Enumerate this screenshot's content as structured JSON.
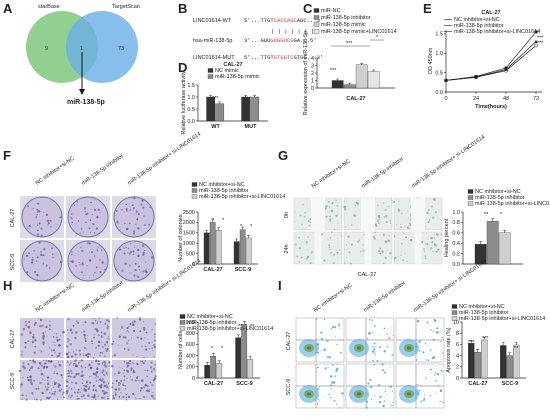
{
  "colors": {
    "dark": "#333333",
    "mid": "#8c8c8c",
    "light": "#cfcfcf",
    "lighter": "#e6e6e6",
    "venn_green": "#7ec87e",
    "venn_blue": "#6aaee6",
    "red": "#d23b3b",
    "crystal": "#6a5aa6"
  },
  "panels": {
    "a": "A",
    "b": "B",
    "c": "C",
    "d": "D",
    "e": "E",
    "f": "F",
    "g": "G",
    "h": "H",
    "i": "I"
  },
  "venn": {
    "left_label": "starBase",
    "right_label": "TargetScan",
    "left_count": "9",
    "overlap_count": "1",
    "right_count": "73",
    "result": "miR-138-5p"
  },
  "seq": {
    "rows": [
      {
        "label": "LINC01614-WT",
        "prefix": "5'...TTGT",
        "core": "CACCAGC",
        "suffix": "AGC...3'",
        "core_red": true
      },
      {
        "label": "hsa-miR-138-5p",
        "prefix": "3'...GUU",
        "core": "GUGGUCG",
        "suffix": "GA...5'",
        "core_red": true
      },
      {
        "label": "LINC01614-MUT",
        "prefix": "5'...TTGT",
        "core": "GTGGTC",
        "suffix": "GTGC...3'",
        "core_red": true
      }
    ],
    "pairing": "| | | | | | |"
  },
  "chart_c": {
    "legend": [
      "miR-NC",
      "miR-138-5p inhibitor",
      "miR-138-5p mimic",
      "miR-138-5p mimic+LINC01614"
    ],
    "ylabel": "Relative expression of miR-138-5p",
    "ticks": [
      "0",
      "1",
      "2",
      "3",
      "4"
    ],
    "xlabel": "CAL-27",
    "sig": [
      "***",
      "***",
      "*"
    ],
    "chart_data": {
      "type": "bar",
      "categories": [
        "CAL-27"
      ],
      "series": [
        {
          "name": "miR-NC",
          "values": [
            1.0
          ]
        },
        {
          "name": "miR-138-5p inhibitor",
          "values": [
            0.45
          ]
        },
        {
          "name": "miR-138-5p mimic",
          "values": [
            3.1
          ]
        },
        {
          "name": "miR-138-5p mimic+LINC01614",
          "values": [
            2.2
          ]
        }
      ],
      "ylim": [
        0,
        4
      ]
    }
  },
  "chart_d": {
    "title": "CAL-27",
    "legend": [
      "NC mimic",
      "miR-138-5p mimic"
    ],
    "ylabel": "Relative luciferase activity",
    "ticks": [
      "0.0",
      "0.5",
      "1.0",
      "1.5"
    ],
    "categories": [
      "WT",
      "MUT"
    ],
    "sig": "***",
    "chart_data": {
      "type": "bar",
      "categories": [
        "WT",
        "MUT"
      ],
      "series": [
        {
          "name": "NC mimic",
          "values": [
            1.0,
            1.0
          ]
        },
        {
          "name": "miR-138-5p mimic",
          "values": [
            0.72,
            1.0
          ]
        }
      ],
      "ylim": [
        0,
        1.5
      ]
    }
  },
  "chart_e": {
    "title": "CAL-27",
    "legend": [
      "NC inhibitor+si-NC",
      "miR-138-5p inhibitor",
      "miR-138-5p inhibitor+si-LINC01614"
    ],
    "ylabel": "OD 450nm",
    "xlabel": "Time(hours)",
    "yticks": [
      "0.0",
      "0.5",
      "1.0",
      "1.5"
    ],
    "xticks": [
      "0",
      "24",
      "48",
      "72"
    ],
    "sig": [
      "***",
      "***"
    ],
    "chart_data": {
      "type": "line",
      "x": [
        0,
        24,
        48,
        72
      ],
      "series": [
        {
          "name": "NC inhibitor+si-NC",
          "values": [
            0.3,
            0.38,
            0.55,
            1.2
          ]
        },
        {
          "name": "miR-138-5p inhibitor",
          "values": [
            0.3,
            0.4,
            0.62,
            1.55
          ]
        },
        {
          "name": "miR-138-5p inhibitor+si-LINC01614",
          "values": [
            0.3,
            0.38,
            0.58,
            1.3
          ]
        }
      ],
      "ylim": [
        0,
        1.6
      ]
    }
  },
  "panel_f": {
    "cols": [
      "NC inhibitor+si-NC",
      "miR-138-5p inhibitor",
      "miR-138-5p inhibitor+ si-LINC01614"
    ],
    "rows": [
      "CAL-27",
      "SCC-9"
    ],
    "legend": [
      "NC inhibitor+si-NC",
      "miR-138-5p inhibitor",
      "miR-138-5p inhibitor+si-LINC01614"
    ],
    "ylabel": "Number of colonies",
    "ticks": [
      "0",
      "500",
      "1000",
      "1500",
      "2000",
      "2500"
    ],
    "categories": [
      "CAL-27",
      "SCC-9"
    ],
    "chart_data": {
      "type": "bar",
      "categories": [
        "CAL-27",
        "SCC-9"
      ],
      "series": [
        {
          "name": "NC inhibitor+si-NC",
          "values": [
            1500,
            1080
          ]
        },
        {
          "name": "miR-138-5p inhibitor",
          "values": [
            2000,
            1650
          ]
        },
        {
          "name": "miR-138-5p inhibitor+si-LINC01614",
          "values": [
            1620,
            1250
          ]
        }
      ],
      "ylim": [
        0,
        2500
      ]
    }
  },
  "panel_g": {
    "cols": [
      "NC inhibitor+si-NC",
      "miR-138-5p inhibitor",
      "miR-138-5p inhibitor+ si-LINC01614"
    ],
    "rows": [
      "0h",
      "24h"
    ],
    "bottom": "CAL-27",
    "legend": [
      "NC inhibitor+si-NC",
      "miR-138-5p inhibitor",
      "miR-138-5p inhibitor+si-LINC01614"
    ],
    "ylabel": "Healing percent",
    "ticks": [
      "0.0",
      "0.2",
      "0.4",
      "0.6",
      "0.8",
      "1.0"
    ],
    "sig": [
      "**",
      "*"
    ],
    "chart_data": {
      "type": "bar",
      "categories": [
        "CAL-27"
      ],
      "series": [
        {
          "name": "NC inhibitor+si-NC",
          "values": [
            0.38
          ]
        },
        {
          "name": "miR-138-5p inhibitor",
          "values": [
            0.82
          ]
        },
        {
          "name": "miR-138-5p inhibitor+si-LINC01614",
          "values": [
            0.6
          ]
        }
      ],
      "ylim": [
        0,
        1.0
      ]
    }
  },
  "panel_h": {
    "cols": [
      "NC inhibitor+si-NC",
      "miR-138-5p inhibitor",
      "miR-138-5p inhibitor+ si-LINC01614"
    ],
    "rows": [
      "CAL-27",
      "SCC-9"
    ],
    "legend": [
      "NC inhibitor+si-NC",
      "miR-138-5p inhibitor",
      "miR-138-5p inhibitor+si-LINC01614"
    ],
    "ylabel": "Number of cells",
    "ticks": [
      "0",
      "200",
      "400",
      "600",
      "800",
      "1000"
    ],
    "categories": [
      "CAL-27",
      "SCC-9"
    ],
    "chart_data": {
      "type": "bar",
      "categories": [
        "CAL-27",
        "SCC-9"
      ],
      "series": [
        {
          "name": "NC inhibitor+si-NC",
          "values": [
            230,
            720
          ]
        },
        {
          "name": "miR-138-5p inhibitor",
          "values": [
            390,
            960
          ]
        },
        {
          "name": "miR-138-5p inhibitor+si-LINC01614",
          "values": [
            260,
            330
          ]
        }
      ],
      "ylim": [
        0,
        1000
      ]
    }
  },
  "panel_i": {
    "cols": [
      "NC inhibitor+si-NC",
      "miR-138-5p inhibitor",
      "miR-138-5p inhibitor+ si-LINC01614"
    ],
    "rows": [
      "CAL-27",
      "SCC-9"
    ],
    "legend": [
      "NC inhibitor+si-NC",
      "miR-138-5p inhibitor",
      "miR-138-5p inhibitor+si-LINC01614"
    ],
    "ylabel": "Apoptosis rate (%)",
    "ticks": [
      "0",
      "2",
      "4",
      "6",
      "8",
      "10"
    ],
    "categories": [
      "CAL-27",
      "SCC-9"
    ],
    "sig": [
      "***",
      "***",
      "**",
      "**"
    ],
    "chart_data": {
      "type": "bar",
      "categories": [
        "CAL-27",
        "SCC-9"
      ],
      "series": [
        {
          "name": "NC inhibitor+si-NC",
          "values": [
            6.2,
            5.8
          ]
        },
        {
          "name": "miR-138-5p inhibitor",
          "values": [
            4.6,
            4.0
          ]
        },
        {
          "name": "miR-138-5p inhibitor+si-LINC01614",
          "values": [
            6.8,
            5.9
          ]
        }
      ],
      "ylim": [
        0,
        10
      ]
    }
  }
}
